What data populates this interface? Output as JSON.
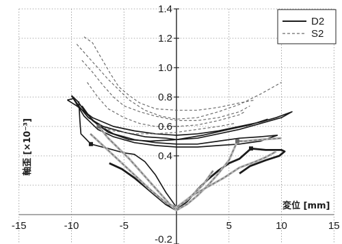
{
  "chart_data": {
    "type": "line",
    "xlabel": "変位 [mm]",
    "ylabel": "軸歪 [×10⁻³]",
    "xlim": [
      -15,
      15
    ],
    "ylim": [
      -0.2,
      1.4
    ],
    "grid": true,
    "legend": "top-right",
    "x_ticks": [
      {
        "value": -15,
        "label": "-15"
      },
      {
        "value": -10,
        "label": "-10"
      },
      {
        "value": -5,
        "label": "-5"
      },
      {
        "value": 5,
        "label": "5"
      },
      {
        "value": 10,
        "label": "10"
      },
      {
        "value": 15,
        "label": "15"
      }
    ],
    "y_ticks": [
      {
        "value": 1.4,
        "label": "1.4"
      },
      {
        "value": 1.2,
        "label": "1.2"
      },
      {
        "value": 1.0,
        "label": "1.0"
      },
      {
        "value": 0.8,
        "label": "0.8"
      },
      {
        "value": 0.6,
        "label": "0.6"
      },
      {
        "value": 0.4,
        "label": "0.4"
      },
      {
        "value": -0.2,
        "label": "-0.2"
      }
    ],
    "series": [
      {
        "name": "D2",
        "line": "solid",
        "color": "#1a1a1a",
        "loops": [
          [
            [
              -10.4,
              0.78
            ],
            [
              -9.8,
              0.79
            ],
            [
              -9.2,
              0.73
            ],
            [
              -8.4,
              0.66
            ],
            [
              -7.0,
              0.6
            ],
            [
              -5.0,
              0.56
            ],
            [
              -3.0,
              0.53
            ],
            [
              -1.0,
              0.52
            ],
            [
              0,
              0.51
            ],
            [
              2,
              0.52
            ],
            [
              4,
              0.55
            ],
            [
              6,
              0.58
            ],
            [
              8,
              0.62
            ],
            [
              10,
              0.66
            ],
            [
              11,
              0.7
            ],
            [
              9.5,
              0.66
            ],
            [
              8,
              0.63
            ],
            [
              6,
              0.6
            ],
            [
              4,
              0.57
            ],
            [
              2,
              0.55
            ],
            [
              0,
              0.54
            ],
            [
              -2,
              0.55
            ],
            [
              -4,
              0.57
            ],
            [
              -6,
              0.6
            ],
            [
              -8,
              0.66
            ],
            [
              -9.5,
              0.74
            ],
            [
              -10.4,
              0.78
            ]
          ],
          [
            [
              -10.0,
              0.81
            ],
            [
              -9.4,
              0.77
            ],
            [
              -8.6,
              0.69
            ],
            [
              -7.5,
              0.61
            ],
            [
              -6,
              0.55
            ],
            [
              -4,
              0.51
            ],
            [
              -2,
              0.49
            ],
            [
              0,
              0.48
            ],
            [
              2,
              0.48
            ],
            [
              4,
              0.5
            ],
            [
              6,
              0.52
            ],
            [
              8,
              0.53
            ],
            [
              9.6,
              0.54
            ],
            [
              8,
              0.5
            ],
            [
              6,
              0.48
            ],
            [
              4,
              0.47
            ],
            [
              2,
              0.46
            ],
            [
              0,
              0.46
            ],
            [
              -2,
              0.47
            ],
            [
              -4,
              0.49
            ],
            [
              -6,
              0.53
            ],
            [
              -7.5,
              0.58
            ],
            [
              -8.8,
              0.67
            ],
            [
              -10,
              0.81
            ]
          ],
          [
            [
              -9.0,
              0.74
            ],
            [
              -8.0,
              0.64
            ],
            [
              -6.5,
              0.56
            ],
            [
              -4.5,
              0.51
            ],
            [
              -2.5,
              0.5
            ],
            [
              0,
              0.51
            ],
            [
              2.5,
              0.54
            ],
            [
              5,
              0.58
            ],
            [
              7,
              0.61
            ],
            [
              8.7,
              0.65
            ]
          ],
          [
            [
              -9.3,
              0.77
            ],
            [
              -9.2,
              0.64
            ],
            [
              -9.1,
              0.55
            ],
            [
              -8.15,
              0.48
            ],
            [
              -6.5,
              0.45
            ],
            [
              -5,
              0.42
            ],
            [
              -4,
              0.41
            ],
            [
              -3,
              0.36
            ],
            [
              -2,
              0.27
            ],
            [
              -1,
              0.15
            ],
            [
              0,
              0.05
            ]
          ],
          [
            [
              -6.4,
              0.35
            ],
            [
              -5.2,
              0.31
            ],
            [
              -4,
              0.25
            ],
            [
              -3,
              0.19
            ],
            [
              -2,
              0.13
            ],
            [
              -1,
              0.07
            ],
            [
              0,
              0.03
            ],
            [
              1,
              0.09
            ],
            [
              2,
              0.17
            ],
            [
              3,
              0.24
            ],
            [
              4,
              0.3
            ],
            [
              5,
              0.35
            ],
            [
              6,
              0.38
            ],
            [
              7.1,
              0.45
            ],
            [
              8.5,
              0.44
            ],
            [
              10,
              0.44
            ],
            [
              10.3,
              0.43
            ],
            [
              9.8,
              0.4
            ],
            [
              8.5,
              0.37
            ],
            [
              7,
              0.33
            ],
            [
              6,
              0.28
            ]
          ]
        ],
        "markers": [
          [
            -8.15,
            0.48
          ],
          [
            7.1,
            0.45
          ]
        ]
      },
      {
        "name": "S2",
        "line": "dashed",
        "color": "#6b6b6b",
        "loops": [
          [
            [
              -9.5,
              1.16
            ],
            [
              -8.5,
              1.08
            ],
            [
              -7.5,
              1.0
            ],
            [
              -6.5,
              0.92
            ],
            [
              -5.5,
              0.85
            ],
            [
              -4.5,
              0.78
            ],
            [
              -3,
              0.71
            ],
            [
              -1.5,
              0.67
            ],
            [
              0,
              0.65
            ],
            [
              2,
              0.66
            ],
            [
              4,
              0.7
            ],
            [
              6,
              0.75
            ],
            [
              8,
              0.82
            ],
            [
              10,
              0.9
            ]
          ],
          [
            [
              -8.8,
              1.21
            ],
            [
              -8,
              1.17
            ],
            [
              -7.2,
              1.07
            ],
            [
              -6.3,
              0.96
            ],
            [
              -5.5,
              0.87
            ],
            [
              -4.5,
              0.81
            ],
            [
              -3.5,
              0.76
            ],
            [
              -2,
              0.72
            ],
            [
              0,
              0.71
            ],
            [
              2,
              0.71
            ],
            [
              4,
              0.73
            ],
            [
              6,
              0.76
            ],
            [
              7.5,
              0.78
            ]
          ],
          [
            [
              -9,
              1.05
            ],
            [
              -8,
              0.97
            ],
            [
              -7,
              0.88
            ],
            [
              -6,
              0.8
            ],
            [
              -5,
              0.74
            ],
            [
              -3.5,
              0.7
            ],
            [
              -2,
              0.67
            ],
            [
              0,
              0.64
            ],
            [
              2,
              0.64
            ],
            [
              4,
              0.66
            ],
            [
              6,
              0.7
            ],
            [
              7,
              0.74
            ]
          ],
          [
            [
              -8.5,
              0.9
            ],
            [
              -7.5,
              0.8
            ],
            [
              -6.5,
              0.72
            ],
            [
              -5,
              0.66
            ],
            [
              -3.5,
              0.62
            ],
            [
              -2,
              0.6
            ],
            [
              0,
              0.6
            ],
            [
              2,
              0.61
            ],
            [
              4,
              0.64
            ],
            [
              6,
              0.68
            ],
            [
              6.5,
              0.7
            ]
          ],
          [
            [
              -7.4,
              0.6
            ],
            [
              -6,
              0.57
            ],
            [
              -4,
              0.55
            ],
            [
              -2,
              0.55
            ],
            [
              0,
              0.56
            ],
            [
              2,
              0.58
            ],
            [
              4,
              0.6
            ],
            [
              5.5,
              0.62
            ]
          ],
          [
            [
              -7.4,
              0.6
            ],
            [
              -6.5,
              0.52
            ],
            [
              -5.5,
              0.45
            ],
            [
              -4.5,
              0.38
            ],
            [
              -3.5,
              0.3
            ],
            [
              -2.5,
              0.22
            ],
            [
              -1.5,
              0.14
            ],
            [
              -0.5,
              0.06
            ],
            [
              0,
              0.03
            ],
            [
              1,
              0.07
            ],
            [
              2,
              0.13
            ],
            [
              3,
              0.2
            ],
            [
              4,
              0.28
            ],
            [
              5,
              0.37
            ],
            [
              5.8,
              0.5
            ],
            [
              6.5,
              0.5
            ],
            [
              8,
              0.51
            ],
            [
              10,
              0.52
            ]
          ],
          [
            [
              0,
              0.05
            ],
            [
              1.5,
              0.13
            ],
            [
              3,
              0.19
            ],
            [
              4.5,
              0.25
            ],
            [
              6,
              0.32
            ],
            [
              7.5,
              0.36
            ],
            [
              8.5,
              0.39
            ],
            [
              9.5,
              0.43
            ]
          ],
          [
            [
              -8.2,
              0.55
            ],
            [
              -7,
              0.47
            ],
            [
              -5.5,
              0.37
            ],
            [
              -4,
              0.27
            ],
            [
              -2.5,
              0.17
            ],
            [
              -1,
              0.08
            ],
            [
              0,
              0.05
            ],
            [
              1,
              0.1
            ],
            [
              2.5,
              0.2
            ],
            [
              3.5,
              0.3
            ]
          ]
        ],
        "markers": [
          [
            -7.4,
            0.6
          ],
          [
            5.8,
            0.5
          ]
        ]
      }
    ]
  }
}
